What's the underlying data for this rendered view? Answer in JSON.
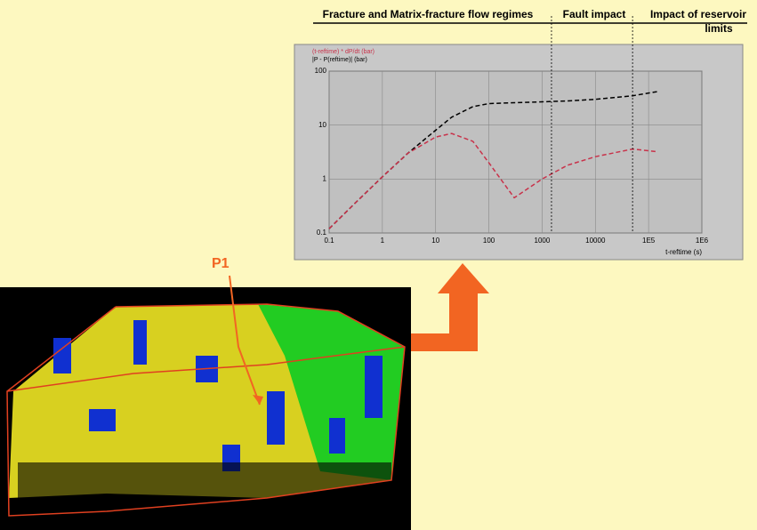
{
  "chart_data": {
    "type": "line",
    "legend": [
      "(t-reftime) * dP/dt (bar)",
      "|P - P(reftime)| (bar)"
    ],
    "xlabel": "t-reftime (s)",
    "x": [
      0.1,
      0.3,
      1,
      3,
      10,
      20,
      50,
      100,
      300,
      1000,
      3000,
      10000,
      50000,
      150000
    ],
    "series": [
      {
        "name": "|P - P(reftime)| (bar)",
        "color": "#000000",
        "values": [
          0.12,
          0.35,
          1.1,
          3,
          8,
          14,
          22,
          25,
          26,
          27,
          28,
          30,
          35,
          42
        ]
      },
      {
        "name": "(t-reftime) * dP/dt (bar)",
        "color": "#c8324a",
        "values": [
          0.12,
          0.35,
          1.1,
          3,
          6,
          7,
          5,
          2,
          0.45,
          1,
          1.8,
          2.6,
          3.6,
          3.2
        ]
      }
    ],
    "xscale": "log",
    "yscale": "log",
    "xlim": [
      0.1,
      1000000
    ],
    "ylim": [
      0.1,
      100
    ],
    "xticks": [
      0.1,
      1,
      10,
      100,
      1000,
      10000,
      {
        "value": 100000,
        "label": "1E5"
      },
      {
        "value": 1000000,
        "label": "1E6"
      }
    ],
    "yticks": [
      0.1,
      1,
      10,
      100
    ],
    "grid": true,
    "regime_bounds": [
      1500,
      50000
    ],
    "annotations": [
      "Fracture and Matrix-fracture flow regimes",
      "Fault impact",
      "Impact of reservoir",
      "limits",
      "P1"
    ]
  }
}
